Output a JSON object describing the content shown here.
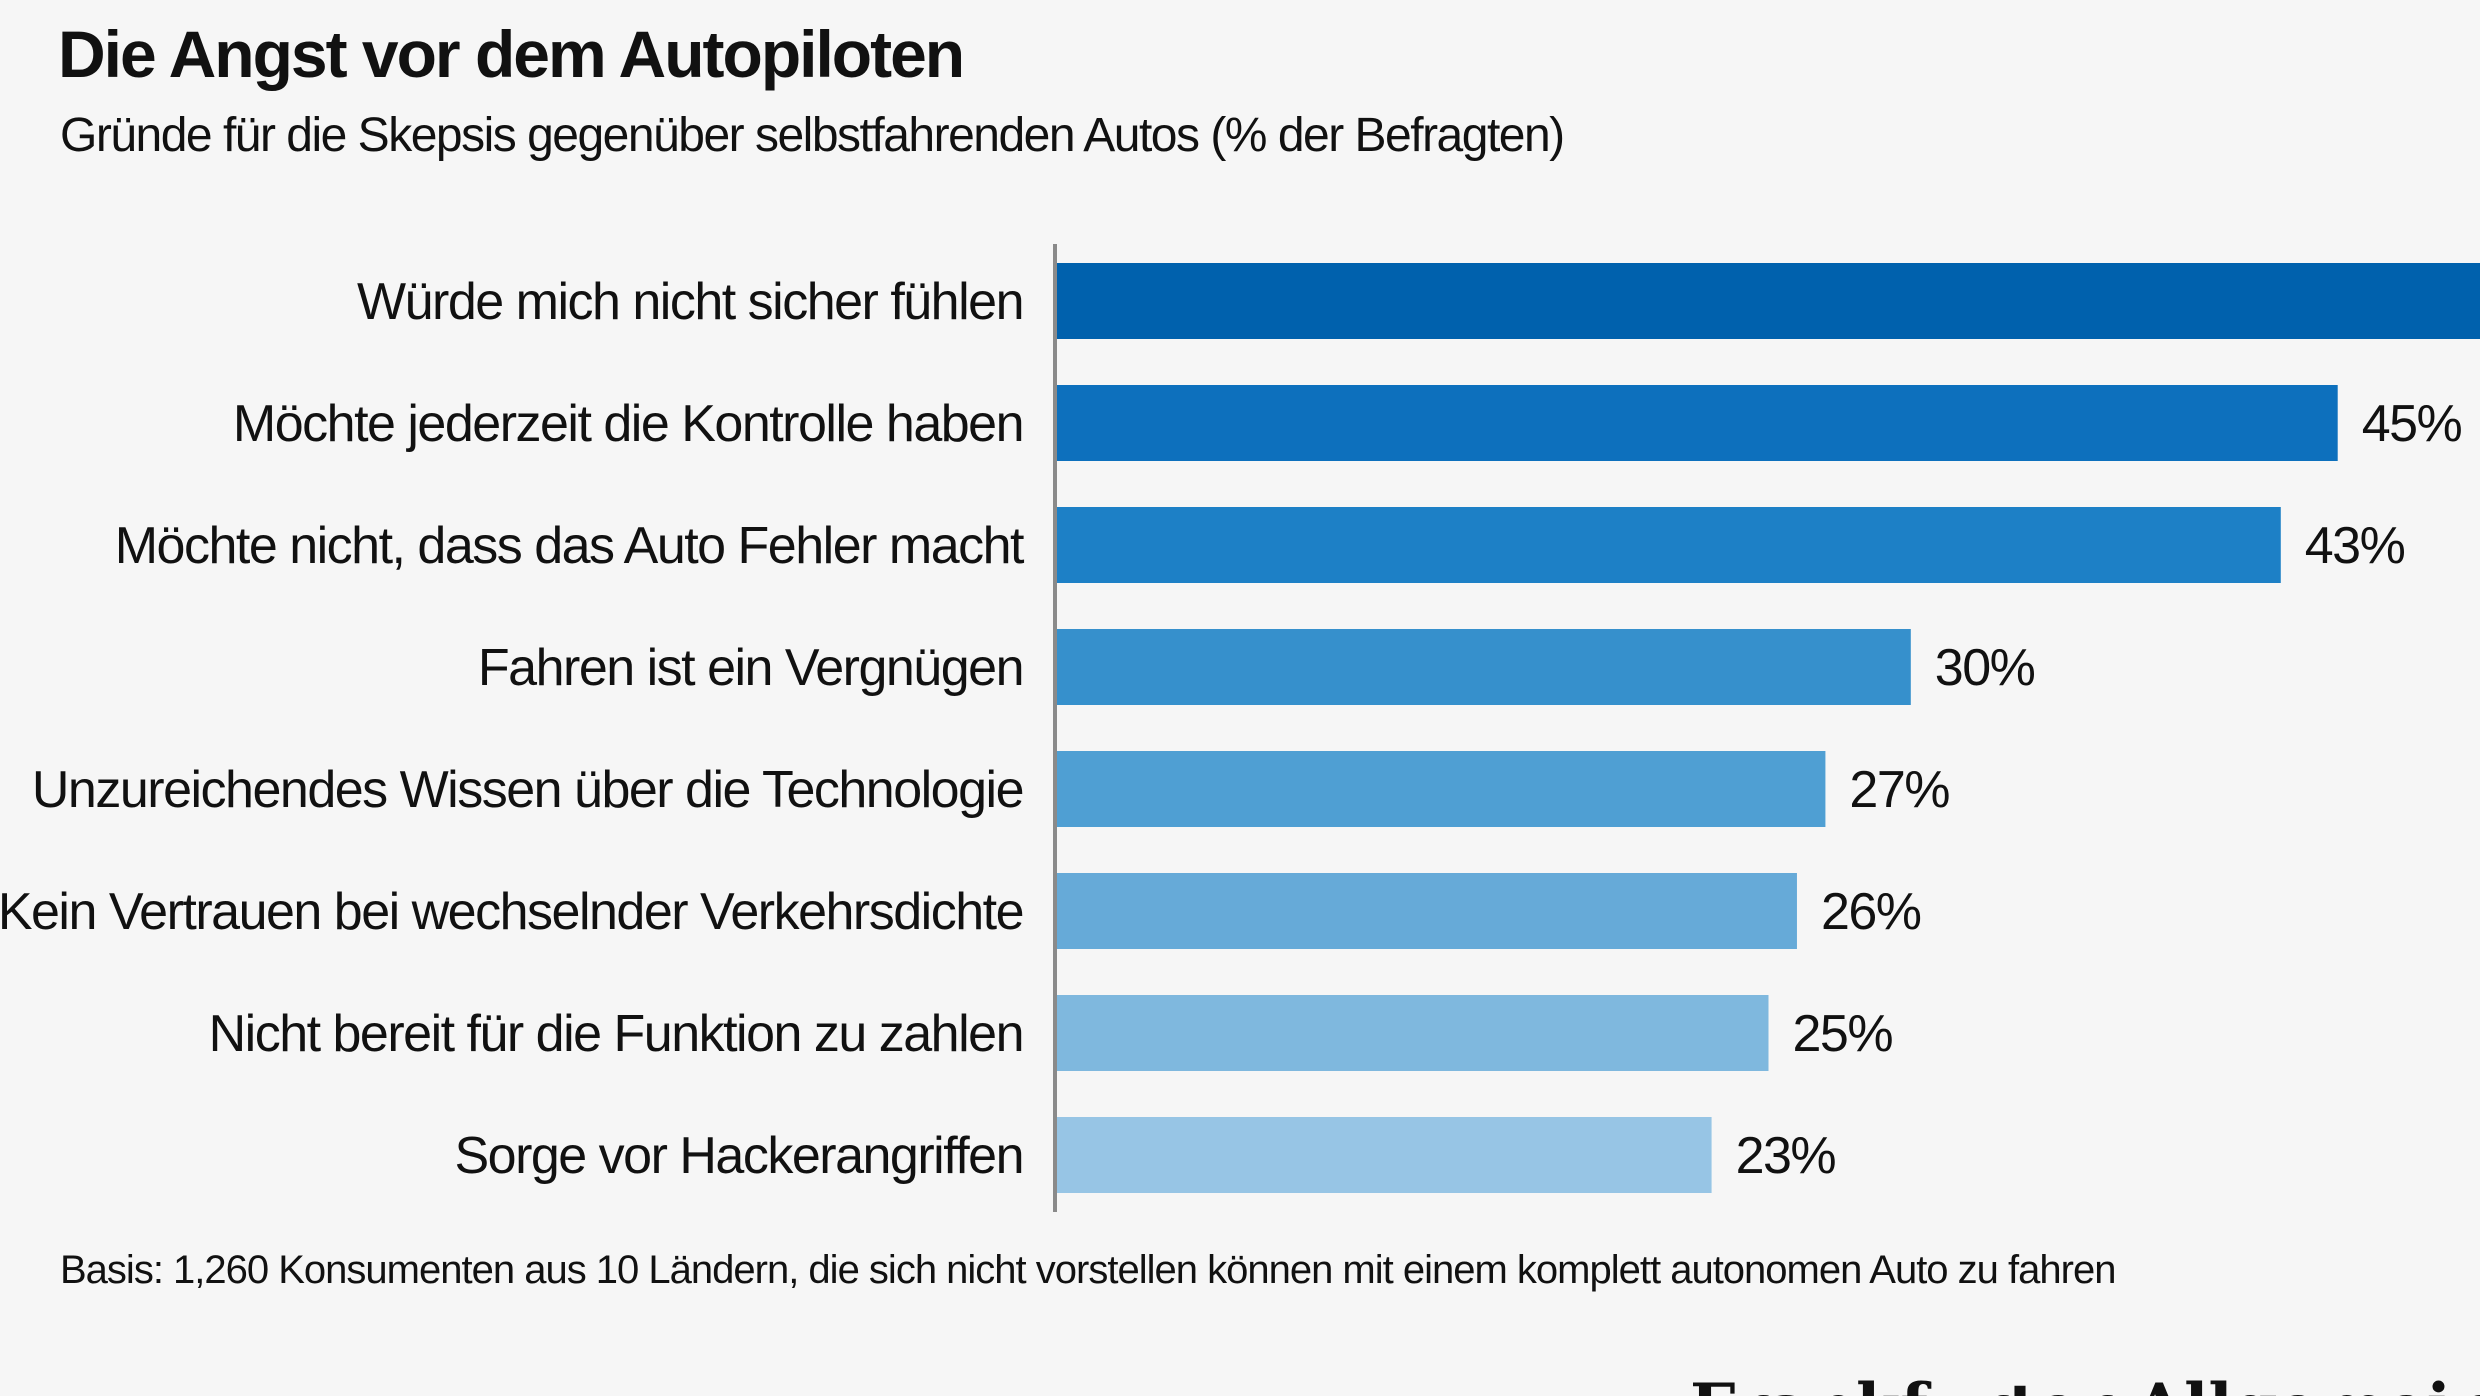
{
  "header": {
    "title": "Die Angst vor dem Autopiloten",
    "subtitle": "Gründe für die Skepsis gegenüber selbstfahrenden Autos (% der Befragten)"
  },
  "footer": {
    "note": "Basis: 1,260 Konsumenten aus 10 Ländern, die sich nicht vorstellen können mit einem komplett autonomen Auto zu fahren",
    "source_logo": "Frankfurter Allgemeine"
  },
  "chart_data": {
    "type": "bar",
    "orientation": "horizontal",
    "title": "Die Angst vor dem Autopiloten",
    "subtitle": "Gründe für die Skepsis gegenüber selbstfahrenden Autos (% der Befragten)",
    "categories": [
      "Würde mich nicht sicher fühlen",
      "Möchte jederzeit die Kontrolle haben",
      "Möchte nicht, dass das Auto Fehler macht",
      "Fahren ist ein Vergnügen",
      "Unzureichendes Wissen über die Technologie",
      "Kein Vertrauen bei wechselnder Verkehrsdichte",
      "Nicht bereit für die Funktion zu zahlen",
      "Sorge vor Hackerangriffen"
    ],
    "values": [
      50,
      45,
      43,
      30,
      27,
      26,
      25,
      23
    ],
    "value_labels": [
      "",
      "45%",
      "43%",
      "30%",
      "27%",
      "26%",
      "25%",
      "23%"
    ],
    "unit": "%",
    "xlim": [
      0,
      50
    ],
    "grid": false,
    "legend": "none",
    "colors": [
      "#0061ad",
      "#0d70bd",
      "#1d80c6",
      "#3690cc",
      "#4f9fd3",
      "#66aad8",
      "#7fb8de",
      "#97c5e5"
    ]
  }
}
